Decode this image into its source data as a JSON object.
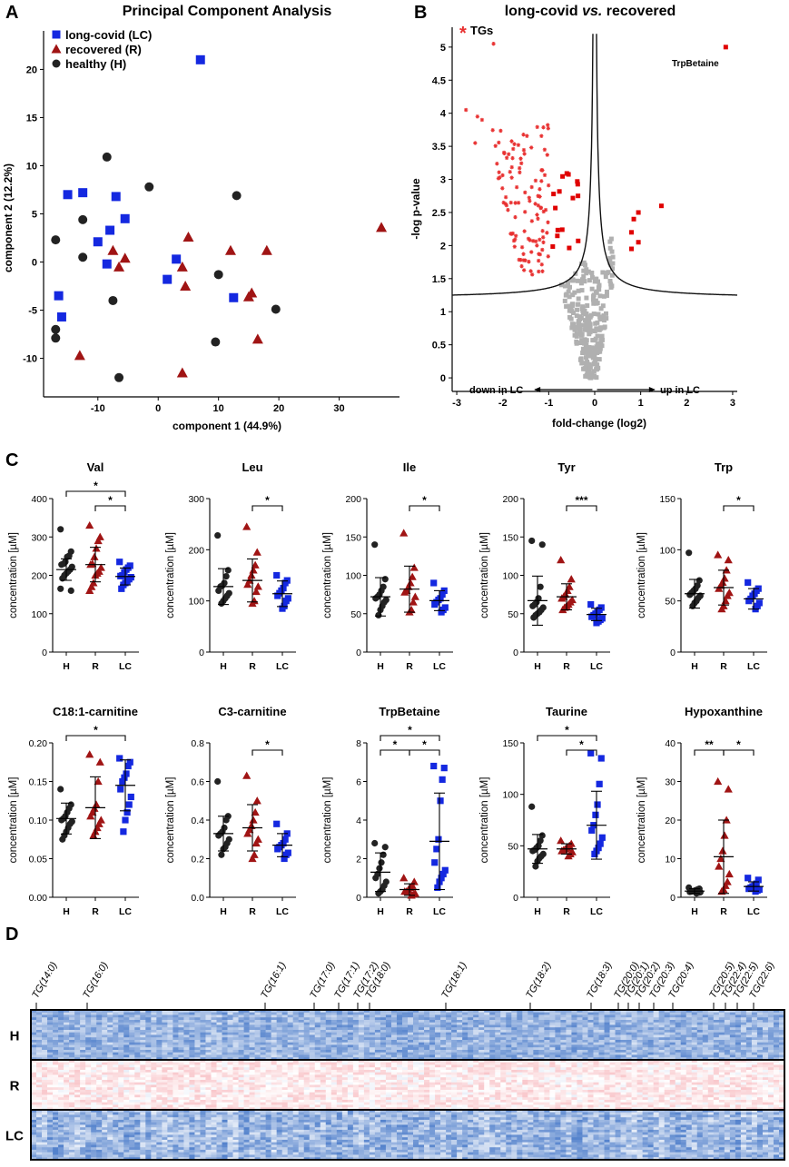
{
  "panels": {
    "A": "A",
    "B": "B",
    "C": "C",
    "D": "D"
  },
  "colors": {
    "LC": "#1428e0",
    "R": "#a01414",
    "H": "#222222",
    "TG": "#e83030",
    "other": "#b0b0b0",
    "up": "#e00000"
  },
  "chart_data": [
    {
      "id": "pca",
      "type": "scatter",
      "title": "Principal Component Analysis",
      "xlabel": "component 1 (44.9%)",
      "ylabel": "component 2 (12.2%)",
      "xlim": [
        -19,
        40
      ],
      "ylim": [
        -14,
        24
      ],
      "xticks": [
        -10,
        0,
        10,
        20,
        30
      ],
      "yticks": [
        -10,
        -5,
        0,
        5,
        10,
        15,
        20
      ],
      "legend_position": "top-left",
      "series": [
        {
          "name": "long-covid (LC)",
          "marker": "square",
          "color": "LC",
          "points": [
            [
              -15,
              7
            ],
            [
              -12.5,
              7.2
            ],
            [
              -7,
              6.8
            ],
            [
              -5.5,
              4.5
            ],
            [
              -10,
              2.1
            ],
            [
              -8,
              3.3
            ],
            [
              -8.5,
              -0.2
            ],
            [
              -16.5,
              -3.5
            ],
            [
              -16,
              -5.7
            ],
            [
              3,
              0.3
            ],
            [
              1.5,
              -1.8
            ],
            [
              12.5,
              -3.7
            ],
            [
              7,
              21
            ]
          ]
        },
        {
          "name": "recovered (R)",
          "marker": "triangle",
          "color": "R",
          "points": [
            [
              -7.5,
              1.2
            ],
            [
              -6.5,
              -0.5
            ],
            [
              -5.5,
              0.4
            ],
            [
              5,
              2.6
            ],
            [
              12,
              1.2
            ],
            [
              15,
              -3.6
            ],
            [
              15.5,
              -3.2
            ],
            [
              16.5,
              -8
            ],
            [
              18,
              1.2
            ],
            [
              4,
              -0.5
            ],
            [
              4.5,
              -2.5
            ],
            [
              4,
              -11.5
            ],
            [
              -13,
              -9.7
            ],
            [
              37,
              3.6
            ]
          ]
        },
        {
          "name": "healthy (H)",
          "marker": "circle",
          "color": "H",
          "points": [
            [
              -8.5,
              10.9
            ],
            [
              -1.5,
              7.8
            ],
            [
              -12.5,
              4.4
            ],
            [
              -17,
              2.3
            ],
            [
              -12.5,
              0.5
            ],
            [
              -7.5,
              -4
            ],
            [
              -17,
              -7
            ],
            [
              -17,
              -7.9
            ],
            [
              -6.5,
              -12
            ],
            [
              10,
              -1.3
            ],
            [
              13,
              6.9
            ],
            [
              9.5,
              -8.3
            ],
            [
              19.5,
              -4.9
            ]
          ]
        }
      ]
    },
    {
      "id": "volcano",
      "type": "scatter",
      "title": "long-covid vs. recovered",
      "title_parts": [
        "long-covid ",
        "vs.",
        " recovered"
      ],
      "xlabel": "fold-change (log2)",
      "ylabel": "-log p-value",
      "xlim": [
        -3.1,
        3.1
      ],
      "ylim": [
        -0.15,
        5.3
      ],
      "xticks": [
        -3,
        -2,
        -1,
        0,
        1,
        2,
        3
      ],
      "yticks": [
        0,
        0.5,
        1,
        1.5,
        2,
        2.5,
        3,
        3.5,
        4,
        4.5,
        5
      ],
      "legend": {
        "symbol": "*",
        "label": "TGs"
      },
      "annotation": "TrpBetaine",
      "arrow_left": "down in LC",
      "arrow_right": "up in LC",
      "highlight": {
        "x": 2.85,
        "y": 5.0
      },
      "up_points": [
        [
          0.85,
          2.4
        ],
        [
          0.8,
          2.2
        ],
        [
          0.8,
          1.95
        ],
        [
          0.95,
          2.05
        ],
        [
          0.95,
          2.5
        ],
        [
          1.45,
          2.6
        ]
      ]
    },
    {
      "id": "val",
      "type": "scatter",
      "title": "Val",
      "ylabel": "concentration [µM]",
      "categories": [
        "H",
        "R",
        "LC"
      ],
      "ylim": [
        0,
        400
      ],
      "yticks": [
        "0",
        "100",
        "200",
        "300",
        "400"
      ],
      "mean": [
        215,
        228,
        197
      ],
      "sd": [
        28,
        45,
        22
      ],
      "values": [
        [
          320,
          262,
          251,
          248,
          235,
          230,
          228,
          222,
          215,
          210,
          205,
          200,
          192,
          165,
          160
        ],
        [
          330,
          300,
          290,
          270,
          248,
          230,
          228,
          220,
          210,
          205,
          200,
          180,
          170,
          160
        ],
        [
          235,
          225,
          220,
          215,
          208,
          200,
          198,
          195,
          190,
          185,
          180,
          175,
          165
        ]
      ],
      "significance": [
        {
          "pair": [
            "H",
            "LC"
          ],
          "label": "*"
        },
        {
          "pair": [
            "R",
            "LC"
          ],
          "label": "*"
        }
      ]
    },
    {
      "id": "leu",
      "type": "scatter",
      "title": "Leu",
      "ylabel": "concentration [µM]",
      "categories": [
        "H",
        "R",
        "LC"
      ],
      "ylim": [
        0,
        300
      ],
      "yticks": [
        "0",
        "100",
        "200",
        "300"
      ],
      "mean": [
        128,
        140,
        114
      ],
      "sd": [
        35,
        42,
        25
      ],
      "values": [
        [
          228,
          160,
          148,
          135,
          130,
          128,
          120,
          115,
          110,
          105,
          100,
          95
        ],
        [
          245,
          195,
          170,
          160,
          150,
          140,
          132,
          128,
          118,
          100,
          95
        ],
        [
          150,
          140,
          135,
          125,
          120,
          115,
          110,
          105,
          100,
          90,
          85
        ]
      ],
      "significance": [
        {
          "pair": [
            "R",
            "LC"
          ],
          "label": "*"
        }
      ]
    },
    {
      "id": "ile",
      "type": "scatter",
      "title": "Ile",
      "ylabel": "concentration [µM]",
      "categories": [
        "H",
        "R",
        "LC"
      ],
      "ylim": [
        0,
        200
      ],
      "yticks": [
        "0",
        "50",
        "100",
        "150",
        "200"
      ],
      "mean": [
        72,
        82,
        67
      ],
      "sd": [
        25,
        30,
        13
      ],
      "values": [
        [
          140,
          95,
          85,
          80,
          75,
          72,
          70,
          68,
          65,
          60,
          55,
          48
        ],
        [
          155,
          110,
          98,
          90,
          85,
          80,
          78,
          72,
          65,
          55,
          52
        ],
        [
          90,
          80,
          75,
          70,
          68,
          65,
          62,
          58,
          55,
          52
        ]
      ],
      "significance": [
        {
          "pair": [
            "R",
            "LC"
          ],
          "label": "*"
        }
      ]
    },
    {
      "id": "tyr",
      "type": "scatter",
      "title": "Tyr",
      "ylabel": "concentration [µM]",
      "categories": [
        "H",
        "R",
        "LC"
      ],
      "ylim": [
        0,
        200
      ],
      "yticks": [
        "0",
        "50",
        "100",
        "150",
        "200"
      ],
      "mean": [
        67,
        72,
        49
      ],
      "sd": [
        32,
        17,
        8
      ],
      "values": [
        [
          145,
          140,
          85,
          70,
          65,
          62,
          60,
          58,
          55,
          52,
          50,
          48,
          45
        ],
        [
          120,
          95,
          85,
          80,
          75,
          72,
          70,
          68,
          65,
          62,
          60,
          58,
          55
        ],
        [
          62,
          58,
          55,
          52,
          50,
          48,
          46,
          44,
          42,
          40,
          38
        ]
      ],
      "significance": [
        {
          "pair": [
            "R",
            "LC"
          ],
          "label": "***"
        }
      ]
    },
    {
      "id": "trp",
      "type": "scatter",
      "title": "Trp",
      "ylabel": "concentration [µM]",
      "categories": [
        "H",
        "R",
        "LC"
      ],
      "ylim": [
        0,
        150
      ],
      "yticks": [
        "0",
        "50",
        "100",
        "150"
      ],
      "mean": [
        57,
        63,
        52
      ],
      "sd": [
        14,
        17,
        10
      ],
      "values": [
        [
          97,
          70,
          65,
          62,
          60,
          58,
          56,
          55,
          53,
          50,
          48,
          45
        ],
        [
          95,
          90,
          80,
          72,
          68,
          65,
          62,
          58,
          55,
          50,
          45,
          42
        ],
        [
          68,
          62,
          60,
          57,
          55,
          52,
          50,
          48,
          45,
          42
        ]
      ],
      "significance": [
        {
          "pair": [
            "R",
            "LC"
          ],
          "label": "*"
        }
      ]
    },
    {
      "id": "c181",
      "type": "scatter",
      "title": "C18:1-carnitine",
      "ylabel": "concentration [µM]",
      "categories": [
        "H",
        "R",
        "LC"
      ],
      "ylim": [
        0,
        0.2
      ],
      "yticks": [
        "0.00",
        "0.05",
        "0.10",
        "0.15",
        "0.20"
      ],
      "mean": [
        0.102,
        0.116,
        0.145
      ],
      "sd": [
        0.02,
        0.04,
        0.033
      ],
      "values": [
        [
          0.14,
          0.12,
          0.115,
          0.11,
          0.105,
          0.102,
          0.1,
          0.098,
          0.095,
          0.09,
          0.085,
          0.08,
          0.075
        ],
        [
          0.185,
          0.175,
          0.15,
          0.12,
          0.115,
          0.11,
          0.105,
          0.1,
          0.095,
          0.09,
          0.085,
          0.08
        ],
        [
          0.18,
          0.175,
          0.17,
          0.16,
          0.155,
          0.15,
          0.14,
          0.13,
          0.12,
          0.11,
          0.1,
          0.085
        ]
      ],
      "significance": [
        {
          "pair": [
            "H",
            "LC"
          ],
          "label": "*"
        }
      ]
    },
    {
      "id": "c3",
      "type": "scatter",
      "title": "C3-carnitine",
      "ylabel": "concentration [µM]",
      "categories": [
        "H",
        "R",
        "LC"
      ],
      "ylim": [
        0,
        0.8
      ],
      "yticks": [
        "0.0",
        "0.2",
        "0.4",
        "0.6",
        "0.8"
      ],
      "mean": [
        0.33,
        0.36,
        0.27
      ],
      "sd": [
        0.09,
        0.12,
        0.06
      ],
      "values": [
        [
          0.6,
          0.42,
          0.4,
          0.36,
          0.34,
          0.33,
          0.32,
          0.3,
          0.28,
          0.26,
          0.25,
          0.22
        ],
        [
          0.63,
          0.5,
          0.44,
          0.4,
          0.37,
          0.35,
          0.33,
          0.3,
          0.28,
          0.22,
          0.2
        ],
        [
          0.38,
          0.33,
          0.3,
          0.28,
          0.27,
          0.26,
          0.25,
          0.23,
          0.22,
          0.2
        ]
      ],
      "significance": [
        {
          "pair": [
            "R",
            "LC"
          ],
          "label": "*"
        }
      ]
    },
    {
      "id": "trpbetaine",
      "type": "scatter",
      "title": "TrpBetaine",
      "ylabel": "concentration [µM]",
      "categories": [
        "H",
        "R",
        "LC"
      ],
      "ylim": [
        0,
        8
      ],
      "yticks": [
        "0",
        "2",
        "4",
        "6",
        "8"
      ],
      "mean": [
        1.3,
        0.4,
        2.9
      ],
      "sd": [
        1.0,
        0.3,
        2.5
      ],
      "values": [
        [
          2.8,
          2.6,
          2.2,
          1.8,
          1.5,
          1.2,
          1.0,
          0.8,
          0.6,
          0.4,
          0.3,
          0.2
        ],
        [
          1.0,
          0.8,
          0.6,
          0.5,
          0.4,
          0.3,
          0.3,
          0.2,
          0.15,
          0.1
        ],
        [
          6.8,
          6.7,
          6.1,
          5.0,
          3.0,
          2.5,
          1.8,
          1.4,
          1.2,
          1.0,
          0.8,
          0.5
        ]
      ],
      "significance": [
        {
          "pair": [
            "H",
            "R"
          ],
          "label": "*"
        },
        {
          "pair": [
            "R",
            "LC"
          ],
          "label": "*"
        },
        {
          "pair": [
            "H",
            "LC"
          ],
          "label": "*"
        }
      ]
    },
    {
      "id": "taurine",
      "type": "scatter",
      "title": "Taurine",
      "ylabel": "concentration [µM]",
      "categories": [
        "H",
        "R",
        "LC"
      ],
      "ylim": [
        0,
        150
      ],
      "yticks": [
        "0",
        "50",
        "100",
        "150"
      ],
      "mean": [
        47,
        47,
        70
      ],
      "sd": [
        14,
        5,
        33
      ],
      "values": [
        [
          88,
          60,
          55,
          50,
          48,
          46,
          45,
          42,
          40,
          38,
          35,
          30
        ],
        [
          55,
          52,
          50,
          48,
          47,
          46,
          45,
          44,
          42,
          40
        ],
        [
          140,
          135,
          110,
          90,
          80,
          70,
          65,
          58,
          52,
          48,
          45,
          42
        ]
      ],
      "significance": [
        {
          "pair": [
            "H",
            "LC"
          ],
          "label": "*"
        },
        {
          "pair": [
            "R",
            "LC"
          ],
          "label": "*"
        }
      ]
    },
    {
      "id": "hypoxanthine",
      "type": "scatter",
      "title": "Hypoxanthine",
      "ylabel": "concentration [µM]",
      "categories": [
        "H",
        "R",
        "LC"
      ],
      "ylim": [
        0,
        40
      ],
      "yticks": [
        "0",
        "10",
        "20",
        "30",
        "40"
      ],
      "mean": [
        1.6,
        10.5,
        2.8
      ],
      "sd": [
        0.6,
        9.5,
        1.2
      ],
      "values": [
        [
          2.5,
          2.2,
          2.0,
          1.8,
          1.6,
          1.5,
          1.4,
          1.3,
          1.2,
          1.0
        ],
        [
          30,
          28,
          20,
          16,
          12,
          10,
          8,
          6,
          4,
          3,
          2,
          1.5
        ],
        [
          5.0,
          4.5,
          3.5,
          3.0,
          2.8,
          2.5,
          2.2,
          2.0,
          1.8,
          1.5
        ]
      ],
      "significance": [
        {
          "pair": [
            "H",
            "R"
          ],
          "label": "**"
        },
        {
          "pair": [
            "R",
            "LC"
          ],
          "label": "*"
        }
      ]
    },
    {
      "id": "heatmap",
      "type": "heatmap",
      "row_groups": [
        "H",
        "R",
        "LC"
      ],
      "column_labels": [
        "TG(14:0)",
        "TG(16:0)",
        "TG(16:1)",
        "TG(17:0)",
        "TG(17:1)",
        "TG(17:2)",
        "TG(18:0)",
        "TG(18:1)",
        "TG(18:2)",
        "TG(18:3)",
        "TG(20:0)",
        "TG(20:1)",
        "TG(20:2)",
        "TG(20:3)",
        "TG(20:4)",
        "TG(20:5)",
        "TG(22:4)",
        "TG(22:5)",
        "TG(22:6)"
      ]
    }
  ]
}
